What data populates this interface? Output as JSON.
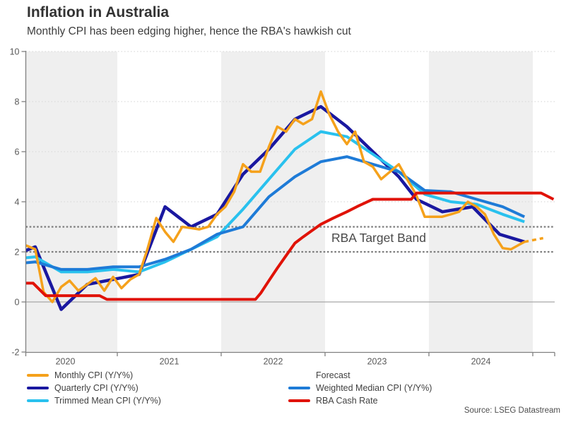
{
  "header": {
    "title": "Inflation in Australia",
    "subtitle": "Monthly CPI has been edging higher, hence the RBA's hawkish cut"
  },
  "annotation": {
    "text": "RBA Target Band"
  },
  "source": {
    "text": "Source: LSEG Datastream"
  },
  "colors": {
    "monthly_cpi": "#F5A11B",
    "quarterly_cpi": "#1A18A0",
    "trimmed_mean": "#29C1EE",
    "weighted_median": "#1E7BD7",
    "cash_rate": "#E01207",
    "band_line": "#7D7D7D",
    "grid_light": "#DBDBDB",
    "zero_line": "#A6A6A6",
    "axis": "#808080",
    "year_band": "#EFEFEF"
  },
  "legend": {
    "columns": [
      [
        {
          "name": "monthly-cpi",
          "label": "Monthly CPI (Y/Y%)",
          "color": "#F5A11B",
          "style": "solid"
        },
        {
          "name": "quarterly-cpi",
          "label": "Quarterly CPI (Y/Y%)",
          "color": "#1A18A0",
          "style": "solid"
        },
        {
          "name": "trimmed-mean",
          "label": "Trimmed Mean CPI (Y/Y%)",
          "color": "#29C1EE",
          "style": "solid"
        }
      ],
      [
        {
          "name": "forecast",
          "label": "Forecast",
          "color": "#F5A11B",
          "style": "dotted"
        },
        {
          "name": "weighted-median",
          "label": "Weighted Median CPI (Y/Y%)",
          "color": "#1E7BD7",
          "style": "solid"
        },
        {
          "name": "rba-cash-rate",
          "label": "RBA Cash Rate",
          "color": "#E01207",
          "style": "solid"
        }
      ]
    ]
  },
  "chart_data": {
    "type": "line",
    "title": "Inflation in Australia",
    "subtitle": "Monthly CPI has been edging higher, hence the RBA's hawkish cut",
    "x_axis": {
      "unit": "year",
      "range": [
        2020.12,
        2025.21
      ],
      "ticks": [
        2021,
        2022,
        2023,
        2024,
        2025
      ],
      "label_years": [
        2020,
        2021,
        2022,
        2023,
        2024
      ],
      "tick_labels": [
        "2020",
        "2021",
        "2022",
        "2023",
        "2024"
      ]
    },
    "y_axis": {
      "unit": "percent",
      "range": [
        -2,
        10
      ],
      "ticks": [
        10,
        8,
        6,
        4,
        2,
        0,
        -2
      ],
      "tick_labels": [
        "10",
        "8",
        "6",
        "4",
        "2",
        "0",
        "-2"
      ],
      "light_gridlines": [
        4,
        6,
        8,
        10
      ],
      "zero_line": 0
    },
    "target_band": {
      "low": 2,
      "high": 3,
      "label": "RBA Target Band"
    },
    "shaded_years": [
      2020,
      2022,
      2024
    ],
    "series": [
      {
        "name": "Quarterly CPI (Y/Y%)",
        "color": "#1A18A0",
        "width": 4.5,
        "dash": null,
        "points": [
          [
            2019.96,
            1.8
          ],
          [
            2020.21,
            2.2
          ],
          [
            2020.46,
            -0.3
          ],
          [
            2020.71,
            0.7
          ],
          [
            2020.96,
            0.9
          ],
          [
            2021.21,
            1.1
          ],
          [
            2021.46,
            3.8
          ],
          [
            2021.71,
            3.0
          ],
          [
            2021.96,
            3.5
          ],
          [
            2022.21,
            5.1
          ],
          [
            2022.46,
            6.1
          ],
          [
            2022.71,
            7.3
          ],
          [
            2022.96,
            7.8
          ],
          [
            2023.21,
            7.0
          ],
          [
            2023.46,
            6.0
          ],
          [
            2023.71,
            5.0
          ],
          [
            2023.88,
            4.1
          ],
          [
            2024.13,
            3.6
          ],
          [
            2024.42,
            3.8
          ],
          [
            2024.68,
            2.7
          ],
          [
            2024.92,
            2.4
          ]
        ]
      },
      {
        "name": "Trimmed Mean CPI (Y/Y%)",
        "color": "#29C1EE",
        "width": 4,
        "dash": null,
        "points": [
          [
            2019.96,
            1.7
          ],
          [
            2020.21,
            1.8
          ],
          [
            2020.46,
            1.2
          ],
          [
            2020.71,
            1.2
          ],
          [
            2020.96,
            1.3
          ],
          [
            2021.21,
            1.2
          ],
          [
            2021.46,
            1.6
          ],
          [
            2021.71,
            2.1
          ],
          [
            2021.96,
            2.6
          ],
          [
            2022.21,
            3.7
          ],
          [
            2022.46,
            4.9
          ],
          [
            2022.71,
            6.1
          ],
          [
            2022.96,
            6.8
          ],
          [
            2023.21,
            6.6
          ],
          [
            2023.46,
            5.9
          ],
          [
            2023.71,
            5.2
          ],
          [
            2023.96,
            4.3
          ],
          [
            2024.21,
            4.0
          ],
          [
            2024.46,
            3.9
          ],
          [
            2024.71,
            3.5
          ],
          [
            2024.92,
            3.2
          ]
        ]
      },
      {
        "name": "Weighted Median CPI (Y/Y%)",
        "color": "#1E7BD7",
        "width": 4,
        "dash": null,
        "points": [
          [
            2019.96,
            1.5
          ],
          [
            2020.21,
            1.6
          ],
          [
            2020.46,
            1.3
          ],
          [
            2020.71,
            1.3
          ],
          [
            2020.96,
            1.4
          ],
          [
            2021.21,
            1.4
          ],
          [
            2021.46,
            1.7
          ],
          [
            2021.71,
            2.1
          ],
          [
            2021.96,
            2.7
          ],
          [
            2022.21,
            3.0
          ],
          [
            2022.46,
            4.2
          ],
          [
            2022.71,
            5.0
          ],
          [
            2022.96,
            5.6
          ],
          [
            2023.21,
            5.8
          ],
          [
            2023.46,
            5.5
          ],
          [
            2023.71,
            5.2
          ],
          [
            2023.96,
            4.45
          ],
          [
            2024.21,
            4.4
          ],
          [
            2024.46,
            4.1
          ],
          [
            2024.71,
            3.8
          ],
          [
            2024.92,
            3.4
          ]
        ]
      },
      {
        "name": "Monthly CPI (Y/Y%)",
        "color": "#F5A11B",
        "width": 3.5,
        "dash": null,
        "points": [
          [
            2020.04,
            2.1
          ],
          [
            2020.125,
            2.25
          ],
          [
            2020.21,
            2.1
          ],
          [
            2020.29,
            0.4
          ],
          [
            2020.375,
            0.0
          ],
          [
            2020.46,
            0.6
          ],
          [
            2020.54,
            0.85
          ],
          [
            2020.625,
            0.45
          ],
          [
            2020.71,
            0.7
          ],
          [
            2020.79,
            0.95
          ],
          [
            2020.875,
            0.45
          ],
          [
            2020.96,
            1.0
          ],
          [
            2021.04,
            0.55
          ],
          [
            2021.125,
            0.9
          ],
          [
            2021.21,
            1.1
          ],
          [
            2021.29,
            2.1
          ],
          [
            2021.375,
            3.35
          ],
          [
            2021.46,
            2.8
          ],
          [
            2021.54,
            2.4
          ],
          [
            2021.625,
            3.0
          ],
          [
            2021.71,
            2.95
          ],
          [
            2021.79,
            2.9
          ],
          [
            2021.875,
            3.0
          ],
          [
            2021.96,
            3.5
          ],
          [
            2022.04,
            3.8
          ],
          [
            2022.125,
            4.4
          ],
          [
            2022.21,
            5.5
          ],
          [
            2022.29,
            5.2
          ],
          [
            2022.375,
            5.2
          ],
          [
            2022.46,
            6.2
          ],
          [
            2022.54,
            7.0
          ],
          [
            2022.625,
            6.8
          ],
          [
            2022.71,
            7.3
          ],
          [
            2022.79,
            7.1
          ],
          [
            2022.875,
            7.3
          ],
          [
            2022.96,
            8.4
          ],
          [
            2023.04,
            7.5
          ],
          [
            2023.125,
            6.8
          ],
          [
            2023.21,
            6.3
          ],
          [
            2023.29,
            6.8
          ],
          [
            2023.375,
            5.6
          ],
          [
            2023.46,
            5.4
          ],
          [
            2023.54,
            4.9
          ],
          [
            2023.625,
            5.2
          ],
          [
            2023.71,
            5.5
          ],
          [
            2023.79,
            4.9
          ],
          [
            2023.875,
            4.3
          ],
          [
            2023.96,
            3.4
          ],
          [
            2024.04,
            3.4
          ],
          [
            2024.125,
            3.4
          ],
          [
            2024.21,
            3.5
          ],
          [
            2024.29,
            3.6
          ],
          [
            2024.375,
            4.0
          ],
          [
            2024.46,
            3.8
          ],
          [
            2024.54,
            3.5
          ],
          [
            2024.625,
            2.7
          ],
          [
            2024.71,
            2.15
          ],
          [
            2024.79,
            2.1
          ],
          [
            2024.875,
            2.3
          ],
          [
            2024.92,
            2.4
          ]
        ]
      },
      {
        "name": "Forecast",
        "color": "#F5A11B",
        "width": 3.5,
        "dash": "6 5",
        "points": [
          [
            2024.92,
            2.4
          ],
          [
            2025.1,
            2.55
          ]
        ]
      },
      {
        "name": "RBA Cash Rate",
        "color": "#E01207",
        "width": 4,
        "dash": null,
        "points": [
          [
            2020.04,
            0.75
          ],
          [
            2020.19,
            0.75
          ],
          [
            2020.31,
            0.25
          ],
          [
            2020.83,
            0.25
          ],
          [
            2020.9,
            0.1
          ],
          [
            2022.33,
            0.1
          ],
          [
            2022.38,
            0.35
          ],
          [
            2022.46,
            0.85
          ],
          [
            2022.54,
            1.35
          ],
          [
            2022.625,
            1.85
          ],
          [
            2022.71,
            2.35
          ],
          [
            2022.79,
            2.6
          ],
          [
            2022.875,
            2.85
          ],
          [
            2022.96,
            3.1
          ],
          [
            2023.08,
            3.35
          ],
          [
            2023.21,
            3.6
          ],
          [
            2023.33,
            3.85
          ],
          [
            2023.46,
            4.1
          ],
          [
            2023.83,
            4.1
          ],
          [
            2023.88,
            4.35
          ],
          [
            2025.08,
            4.35
          ],
          [
            2025.2,
            4.1
          ]
        ]
      }
    ]
  }
}
